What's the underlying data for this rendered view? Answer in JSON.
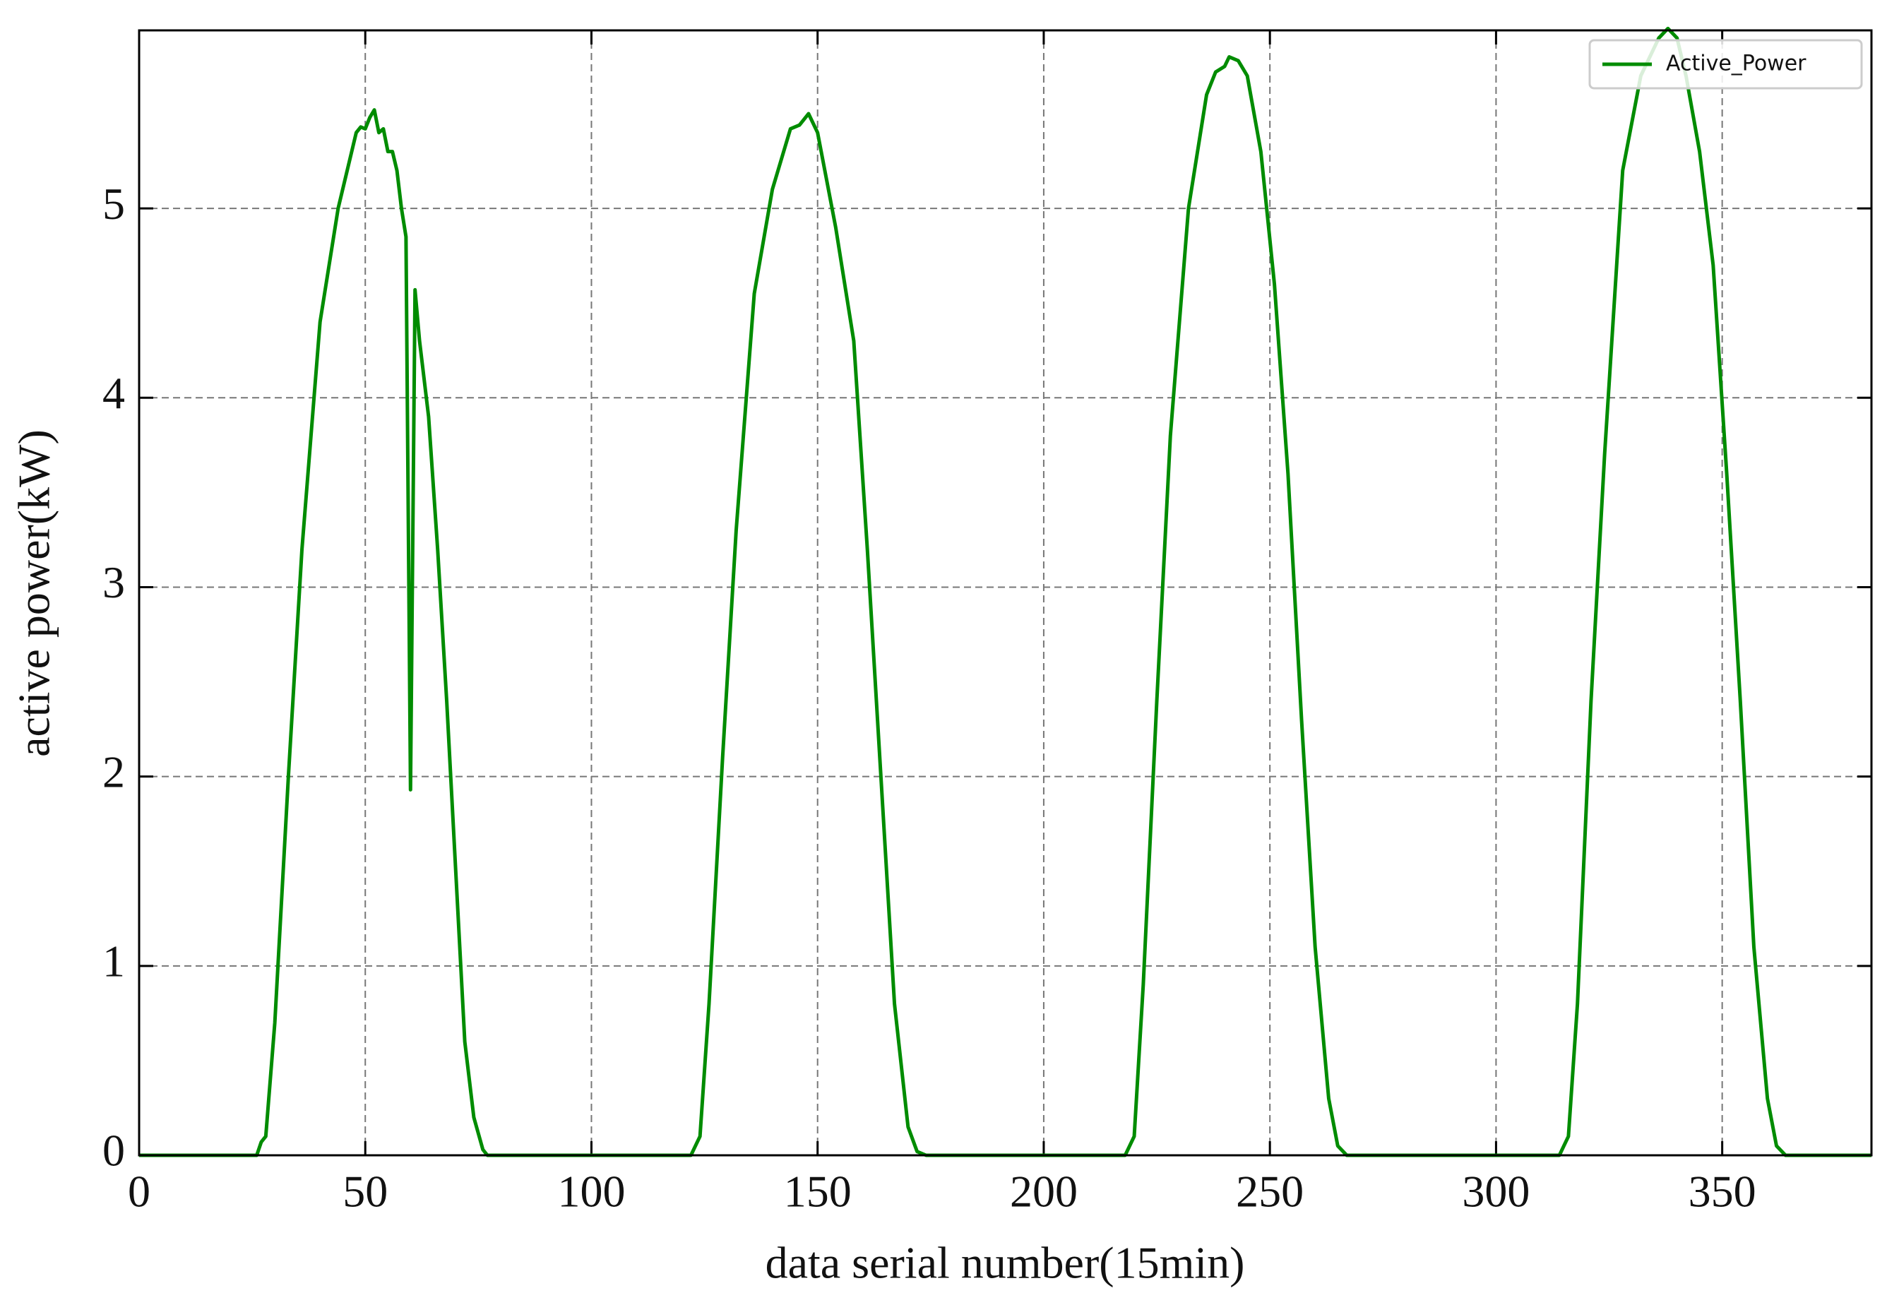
{
  "chart_data": {
    "type": "line",
    "xlabel": "data serial number(15min)",
    "ylabel": "active power(kW)",
    "x": [
      0,
      26,
      27,
      28,
      30,
      33,
      36,
      40,
      44,
      48,
      49,
      50,
      51,
      52,
      53,
      54,
      55,
      56,
      57,
      58,
      59,
      60,
      61,
      62,
      64,
      66,
      68,
      70,
      72,
      74,
      76,
      77,
      122,
      123,
      124,
      126,
      129,
      132,
      136,
      140,
      144,
      146,
      148,
      150,
      154,
      158,
      161,
      164,
      167,
      170,
      172,
      174,
      218,
      219,
      220,
      222,
      225,
      228,
      232,
      236,
      238,
      240,
      241,
      243,
      245,
      248,
      251,
      254,
      257,
      260,
      263,
      265,
      267,
      314,
      315,
      316,
      318,
      321,
      324,
      328,
      332,
      336,
      338,
      340,
      342,
      345,
      348,
      351,
      354,
      357,
      360,
      362,
      364,
      383
    ],
    "series": [
      {
        "name": "Active_Power",
        "color": "#008c00",
        "values": [
          0,
          0,
          0.07,
          0.1,
          0.7,
          2.0,
          3.2,
          4.4,
          5.0,
          5.4,
          5.43,
          5.42,
          5.48,
          5.52,
          5.4,
          5.42,
          5.3,
          5.3,
          5.2,
          5.0,
          4.85,
          1.93,
          4.57,
          4.3,
          3.9,
          3.2,
          2.4,
          1.5,
          0.6,
          0.2,
          0.03,
          0,
          0,
          0.05,
          0.1,
          0.8,
          2.1,
          3.3,
          4.55,
          5.1,
          5.42,
          5.44,
          5.5,
          5.4,
          4.9,
          4.3,
          3.2,
          2.0,
          0.8,
          0.15,
          0.02,
          0,
          0,
          0.05,
          0.1,
          0.9,
          2.4,
          3.8,
          5.0,
          5.6,
          5.72,
          5.75,
          5.8,
          5.78,
          5.7,
          5.3,
          4.6,
          3.6,
          2.3,
          1.1,
          0.3,
          0.05,
          0,
          0,
          0.05,
          0.1,
          0.8,
          2.4,
          3.7,
          5.2,
          5.7,
          5.9,
          5.95,
          5.9,
          5.7,
          5.3,
          4.7,
          3.6,
          2.4,
          1.1,
          0.3,
          0.05,
          0,
          0
        ]
      }
    ],
    "xlim": [
      0,
      383
    ],
    "xticks": [
      0,
      50,
      100,
      150,
      200,
      250,
      300,
      350
    ],
    "ylim": [
      0,
      5.94
    ],
    "yticks": [
      0,
      1,
      2,
      3,
      4,
      5
    ],
    "grid": true,
    "legend": "upper right"
  }
}
